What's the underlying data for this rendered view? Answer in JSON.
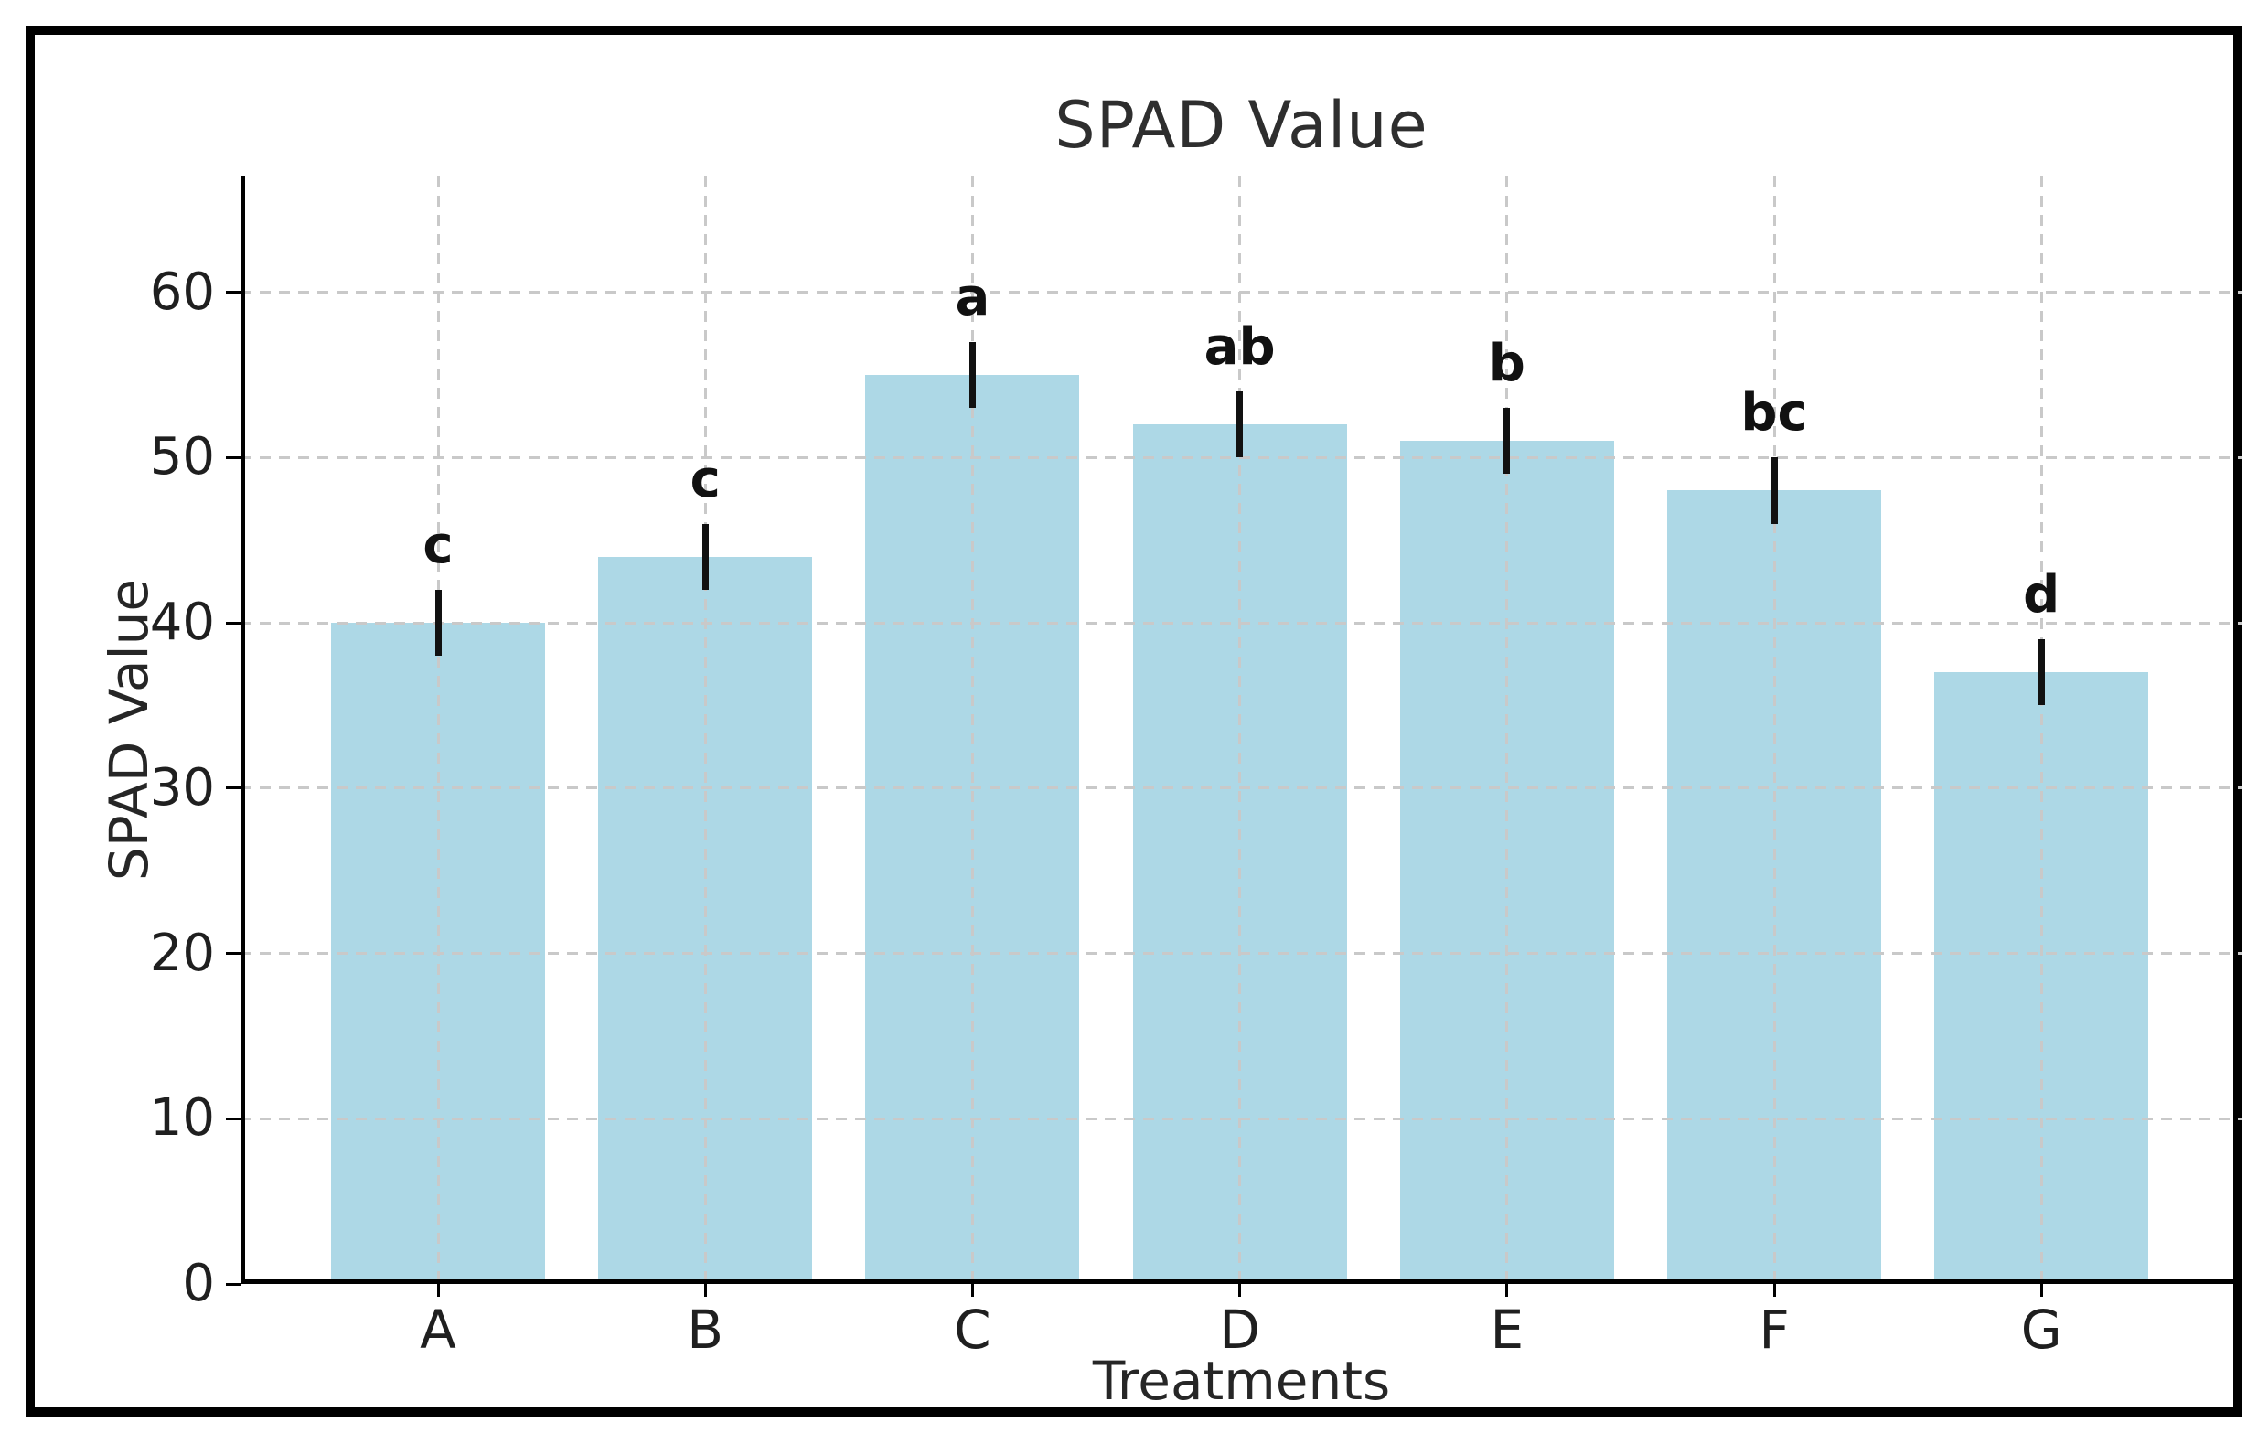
{
  "figure": {
    "background": "#ffffff",
    "border_color": "#000000"
  },
  "chart_data": {
    "type": "bar",
    "title": "SPAD Value",
    "xlabel": "Treatments",
    "ylabel": "SPAD Value",
    "categories": [
      "A",
      "B",
      "C",
      "D",
      "E",
      "F",
      "G"
    ],
    "series": [
      {
        "name": "SPAD Value",
        "values": [
          40,
          44,
          55,
          52,
          51,
          48,
          37
        ],
        "errors": [
          2,
          2,
          2,
          2,
          2,
          2,
          2
        ],
        "sig_letters": [
          "c",
          "c",
          "a",
          "ab",
          "b",
          "bc",
          "d"
        ]
      }
    ],
    "yticks": [
      0,
      10,
      20,
      30,
      40,
      50,
      60
    ],
    "ylim": [
      0,
      67
    ],
    "grid": true,
    "grid_style": "dashed",
    "legend": "none",
    "bar_color": "#ADD8E6",
    "error_color": "#111111",
    "grid_color": "#c9c9c9",
    "axis_color": "#000000",
    "text_color": "#262626"
  }
}
